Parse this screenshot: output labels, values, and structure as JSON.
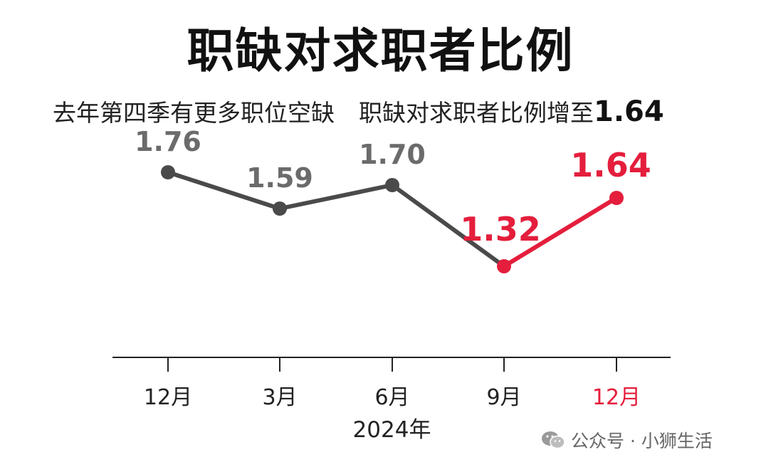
{
  "title": "职缺对求职者比例",
  "subtitle": {
    "part1": "去年第四季有更多职位空缺",
    "part2": "职缺对求职者比例增至",
    "highlight": "1.64"
  },
  "colors": {
    "dark": "#4a4a4a",
    "label_gray": "#6b6b6b",
    "red": "#e41e3c"
  },
  "chart_data": {
    "type": "line",
    "title": "职缺对求职者比例",
    "x": [
      "12月",
      "3月",
      "6月",
      "9月",
      "12月"
    ],
    "x_group_label": "2024年",
    "values": [
      1.76,
      1.59,
      1.7,
      1.32,
      1.64
    ],
    "data_labels": [
      "1.76",
      "1.59",
      "1.70",
      "1.32",
      "1.64"
    ],
    "highlight_from_index": 3,
    "ylim": [
      1.0,
      1.9
    ],
    "grid": false
  },
  "watermark": {
    "text": "公众号 · 小狮生活",
    "icon": "wechat-icon"
  }
}
